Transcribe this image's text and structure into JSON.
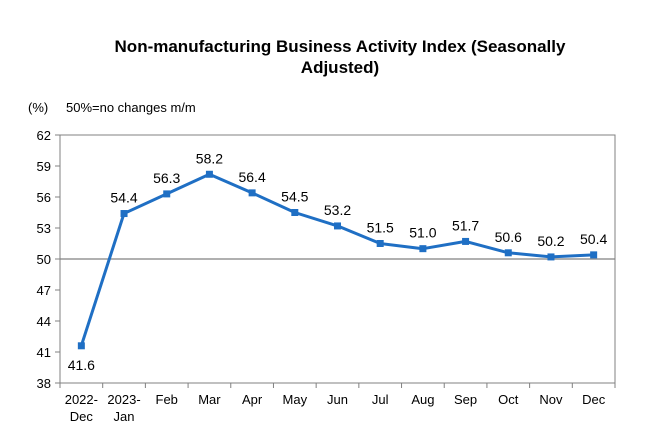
{
  "chart_data": {
    "type": "line",
    "title_line1": "Non-manufacturing Business Activity Index (Seasonally",
    "title_line2": "Adjusted)",
    "ylabel": "(%)",
    "note": "50%=no changes m/m",
    "categories": [
      [
        "2022-",
        "Dec"
      ],
      [
        "2023-",
        "Jan"
      ],
      [
        "Feb"
      ],
      [
        "Mar"
      ],
      [
        "Apr"
      ],
      [
        "May"
      ],
      [
        "Jun"
      ],
      [
        "Jul"
      ],
      [
        "Aug"
      ],
      [
        "Sep"
      ],
      [
        "Oct"
      ],
      [
        "Nov"
      ],
      [
        "Dec"
      ]
    ],
    "series": [
      {
        "values": [
          41.6,
          54.4,
          56.3,
          58.2,
          56.4,
          54.5,
          53.2,
          51.5,
          51.0,
          51.7,
          50.6,
          50.2,
          50.4
        ],
        "labels": [
          "41.6",
          "54.4",
          "56.3",
          "58.2",
          "56.4",
          "54.5",
          "53.2",
          "51.5",
          "51.0",
          "51.7",
          "50.6",
          "50.2",
          "50.4"
        ]
      }
    ],
    "ylim": [
      38,
      62
    ],
    "yticks": [
      38,
      41,
      44,
      47,
      50,
      53,
      56,
      59,
      62
    ],
    "reference_line": 50,
    "grid": false,
    "colors": {
      "line": "#1f6fc4",
      "marker": "#1f6fc4",
      "reference": "#808080",
      "axis": "#808080"
    }
  }
}
